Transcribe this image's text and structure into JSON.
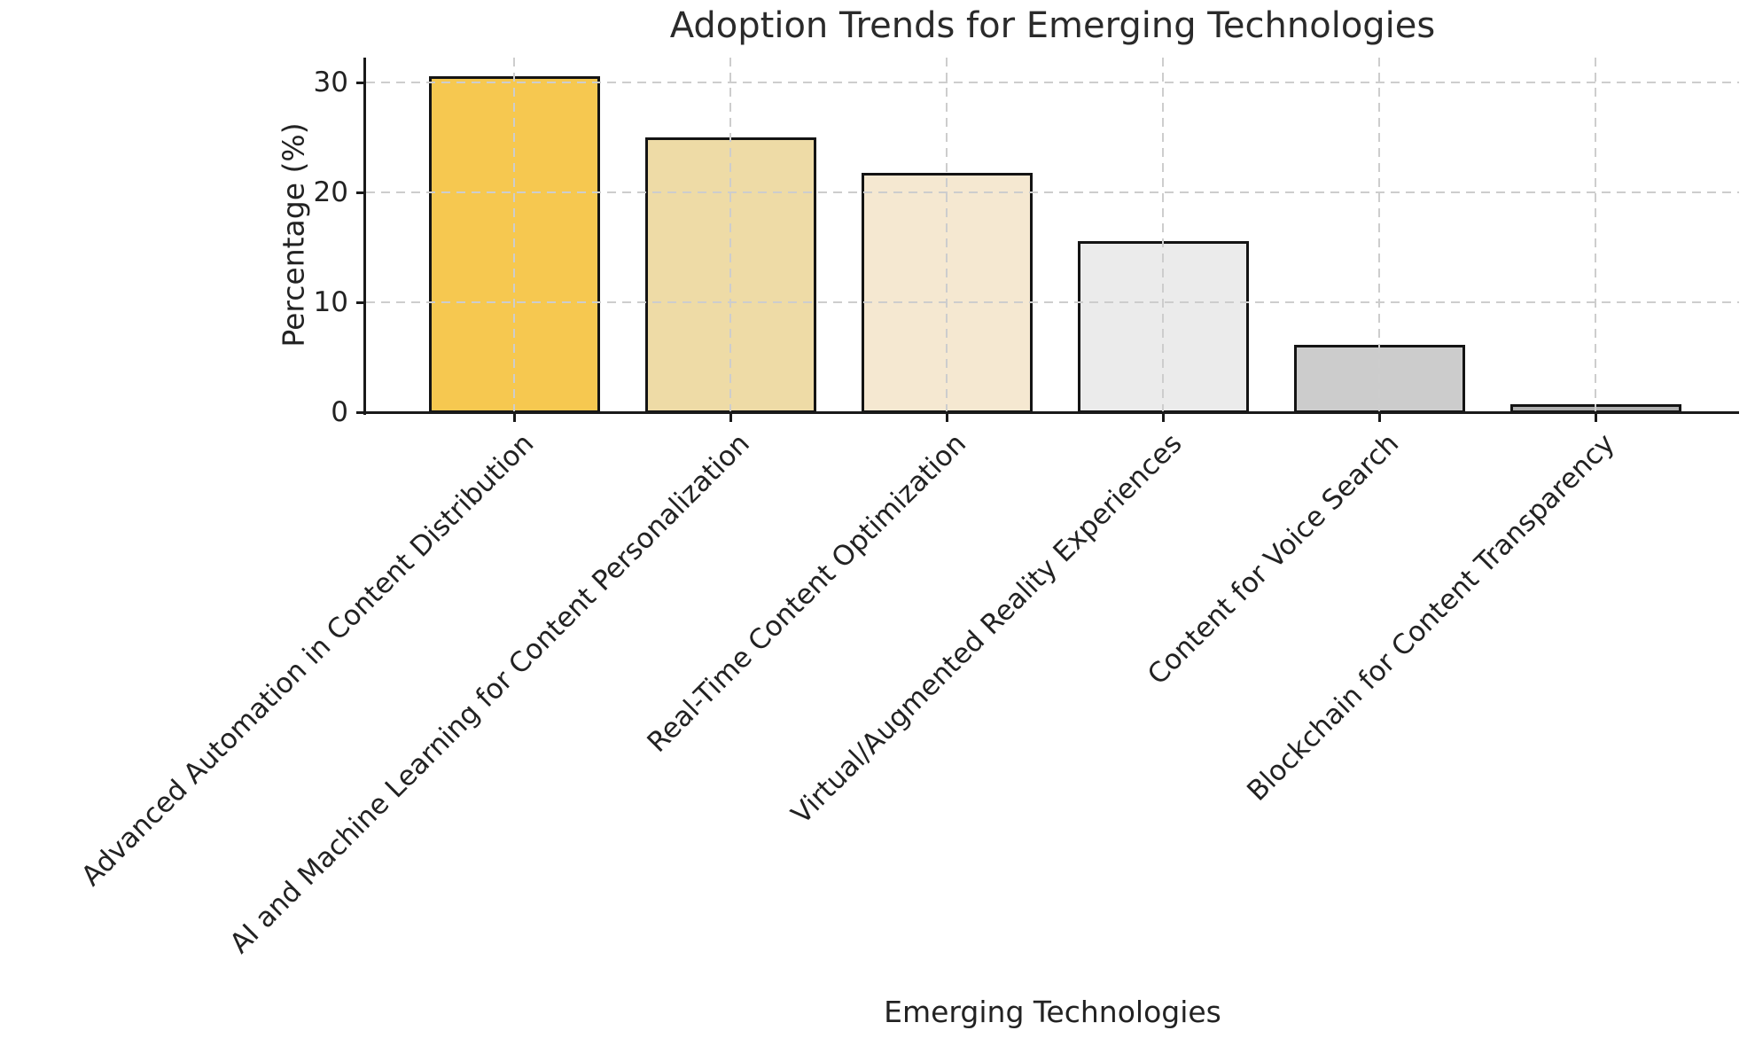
{
  "chart_data": {
    "type": "bar",
    "title": "Adoption Trends for Emerging Technologies",
    "xlabel": "Emerging Technologies",
    "ylabel": "Percentage (%)",
    "categories": [
      "Advanced Automation in Content Distribution",
      "AI and Machine Learning for Content Personalization",
      "Real-Time Content Optimization",
      "Virtual/Augmented Reality Experiences",
      "Content for Voice Search",
      "Blockchain for Content Transparency"
    ],
    "values": [
      30.6,
      25.0,
      21.8,
      15.6,
      6.1,
      0.7
    ],
    "bar_colors": [
      "#F6C850",
      "#EEDBA6",
      "#F5E8D1",
      "#EBEBEB",
      "#CCCCCC",
      "#AFAFAF"
    ],
    "bar_edge_color": "#141414",
    "yticks": [
      0,
      10,
      20,
      30
    ],
    "ylim": [
      0,
      32.3
    ],
    "grid": "dashed",
    "grid_color": "#CDCDCD",
    "legend": "none",
    "background": "#FFFFFF"
  }
}
